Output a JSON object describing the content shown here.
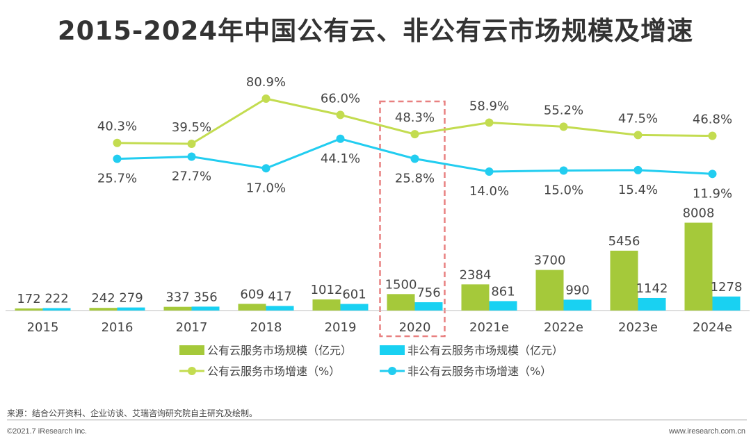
{
  "title": "2015-2024年中国公有云、非公有云市场规模及增速",
  "chart_data": {
    "type": "bar+line",
    "categories": [
      "2015",
      "2016",
      "2017",
      "2018",
      "2019",
      "2020",
      "2021e",
      "2022e",
      "2023e",
      "2024e"
    ],
    "bar_series": [
      {
        "name": "公有云服务市场规模（亿元）",
        "values": [
          172,
          242,
          337,
          609,
          1012,
          1500,
          2384,
          3700,
          5456,
          8008
        ],
        "color": "#a5c93a"
      },
      {
        "name": "非公有云服务市场规模（亿元）",
        "values": [
          222,
          279,
          356,
          417,
          601,
          756,
          861,
          990,
          1142,
          1278
        ],
        "color": "#19d1f2"
      }
    ],
    "line_series": [
      {
        "name": "公有云服务市场增速（%）",
        "values": [
          40.3,
          39.5,
          80.9,
          66.0,
          48.3,
          58.9,
          55.2,
          47.5,
          46.8
        ],
        "start_index": 1,
        "color": "#c3dc50"
      },
      {
        "name": "非公有云服务市场增速（%）",
        "values": [
          25.7,
          27.7,
          17.0,
          44.1,
          25.8,
          14.0,
          15.0,
          15.4,
          11.9
        ],
        "start_index": 1,
        "color": "#22cdf0"
      }
    ],
    "bar_ylim": [
      0,
      9500
    ],
    "line_ylim": [
      0,
      100
    ],
    "highlight_category": "2020",
    "highlight_color": "#e88080"
  },
  "source": "来源：结合公开资料、企业访谈、艾瑞咨询研究院自主研究及绘制。",
  "copyright": "©2021.7 iResearch Inc.",
  "website": "www.iresearch.com.cn"
}
